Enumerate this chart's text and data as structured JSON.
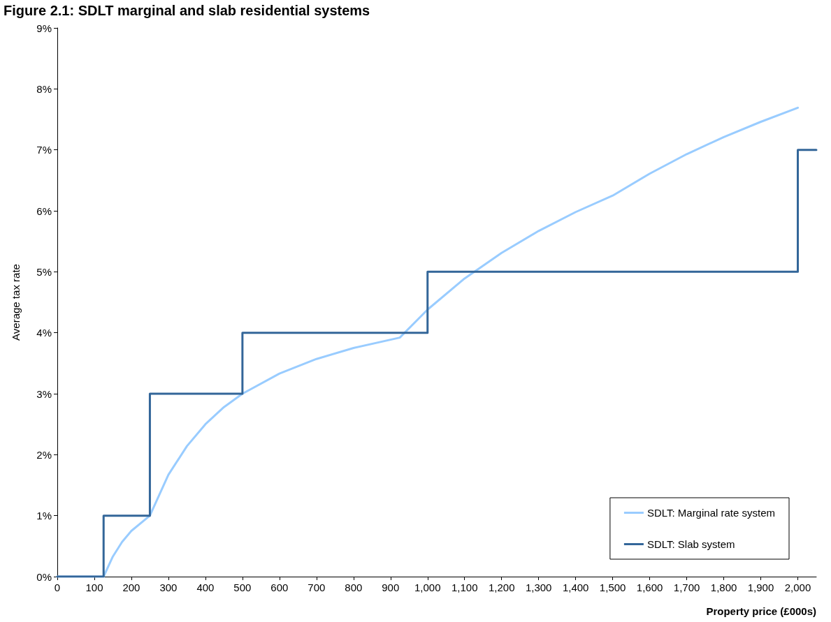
{
  "chart_data": {
    "type": "line",
    "title": "Figure 2.1: SDLT marginal and slab residential systems",
    "xlabel": "Property price (£000s)",
    "ylabel": "Average tax rate",
    "xlim": [
      0,
      2050
    ],
    "xticks": [
      0,
      100,
      200,
      300,
      400,
      500,
      600,
      700,
      800,
      900,
      {
        "value": 1000,
        "label": "1,000"
      },
      {
        "value": 1100,
        "label": "1,100"
      },
      {
        "value": 1200,
        "label": "1,200"
      },
      {
        "value": 1300,
        "label": "1,300"
      },
      {
        "value": 1400,
        "label": "1,400"
      },
      {
        "value": 1500,
        "label": "1,500"
      },
      {
        "value": 1600,
        "label": "1,600"
      },
      {
        "value": 1700,
        "label": "1,700"
      },
      {
        "value": 1800,
        "label": "1,800"
      },
      {
        "value": 1900,
        "label": "1,900"
      },
      {
        "value": 2000,
        "label": "2,000"
      }
    ],
    "ylim": [
      0,
      9
    ],
    "yticks": [
      {
        "value": 0,
        "label": "0%"
      },
      {
        "value": 1,
        "label": "1%"
      },
      {
        "value": 2,
        "label": "2%"
      },
      {
        "value": 3,
        "label": "3%"
      },
      {
        "value": 4,
        "label": "4%"
      },
      {
        "value": 5,
        "label": "5%"
      },
      {
        "value": 6,
        "label": "6%"
      },
      {
        "value": 7,
        "label": "7%"
      },
      {
        "value": 8,
        "label": "8%"
      },
      {
        "value": 9,
        "label": "9%"
      }
    ],
    "grid": false,
    "legend": "bottom right",
    "marker": "none",
    "line_style": "solid",
    "series": [
      {
        "name": "SDLT: Marginal rate system",
        "color": "#99ccff",
        "x": [
          0,
          125,
          150,
          175,
          200,
          250,
          300,
          350,
          400,
          450,
          500,
          600,
          700,
          800,
          925,
          1000,
          1100,
          1200,
          1300,
          1400,
          1500,
          1600,
          1700,
          1800,
          1900,
          2000
        ],
        "values": [
          0,
          0,
          0.33,
          0.57,
          0.75,
          1.0,
          1.67,
          2.14,
          2.5,
          2.78,
          3.0,
          3.33,
          3.57,
          3.75,
          3.92,
          4.38,
          4.89,
          5.31,
          5.67,
          5.98,
          6.25,
          6.61,
          6.93,
          7.21,
          7.46,
          7.69
        ]
      },
      {
        "name": "SDLT: Slab system",
        "type": "step",
        "color": "#336699",
        "x": [
          0,
          125,
          250,
          500,
          1000,
          2000,
          2050
        ],
        "values": [
          0,
          1,
          3,
          4,
          5,
          7,
          7
        ]
      }
    ]
  }
}
